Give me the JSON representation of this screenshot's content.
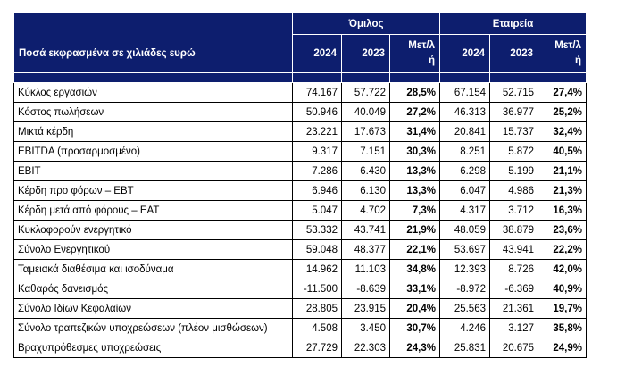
{
  "header": {
    "group": "Όμιλος",
    "company": "Εταιρεία",
    "row_label": "Ποσά εκφρασμένα σε χιλιάδες ευρώ",
    "columns": [
      "2024",
      "2023",
      "Μετ/λ ή",
      "2024",
      "2023",
      "Μετ/λ ή"
    ],
    "change_line1": "Μετ/λ",
    "change_line2": "ή"
  },
  "rows": [
    {
      "label": "Κύκλος εργασιών",
      "values": [
        "74.167",
        "57.722",
        "28,5%",
        "67.154",
        "52.715",
        "27,4%"
      ]
    },
    {
      "label": "Κόστος πωλήσεων",
      "values": [
        "50.946",
        "40.049",
        "27,2%",
        "46.313",
        "36.977",
        "25,2%"
      ]
    },
    {
      "label": "Μικτά κέρδη",
      "values": [
        "23.221",
        "17.673",
        "31,4%",
        "20.841",
        "15.737",
        "32,4%"
      ]
    },
    {
      "label": "EBITDA (προσαρμοσμένο)",
      "values": [
        "9.317",
        "7.151",
        "30,3%",
        "8.251",
        "5.872",
        "40,5%"
      ]
    },
    {
      "label": "EBIT",
      "values": [
        "7.286",
        "6.430",
        "13,3%",
        "6.298",
        "5.199",
        "21,1%"
      ]
    },
    {
      "label": "Κέρδη προ φόρων – EBT",
      "values": [
        "6.946",
        "6.130",
        "13,3%",
        "6.047",
        "4.986",
        "21,3%"
      ]
    },
    {
      "label": "Κέρδη μετά από φόρους – EAT",
      "values": [
        "5.047",
        "4.702",
        "7,3%",
        "4.317",
        "3.712",
        "16,3%"
      ]
    },
    {
      "label": "Κυκλοφορούν ενεργητικό",
      "values": [
        "53.332",
        "43.741",
        "21,9%",
        "48.059",
        "38.879",
        "23,6%"
      ]
    },
    {
      "label": "Σύνολο Ενεργητικού",
      "values": [
        "59.048",
        "48.377",
        "22,1%",
        "53.697",
        "43.941",
        "22,2%"
      ]
    },
    {
      "label": "Ταμειακά διαθέσιμα και ισοδύναμα",
      "values": [
        "14.962",
        "11.103",
        "34,8%",
        "12.393",
        "8.726",
        "42,0%"
      ]
    },
    {
      "label": "Καθαρός δανεισμός",
      "values": [
        "-11.500",
        "-8.639",
        "33,1%",
        "-8.972",
        "-6.369",
        "40,9%"
      ]
    },
    {
      "label": "Σύνολο Ιδίων Κεφαλαίων",
      "values": [
        "28.805",
        "23.915",
        "20,4%",
        "25.563",
        "21.361",
        "19,7%"
      ]
    },
    {
      "label": "Σύνολο τραπεζικών υποχρεώσεων (πλέον μισθώσεων)",
      "values": [
        "4.508",
        "3.450",
        "30,7%",
        "4.246",
        "3.127",
        "35,8%"
      ]
    },
    {
      "label": "Βραχυπρόθεσμες υποχρεώσεις",
      "values": [
        "27.729",
        "22.303",
        "24,3%",
        "25.831",
        "20.675",
        "24,9%"
      ]
    }
  ],
  "colors": {
    "header_bg": "#0d1e6e",
    "header_text": "#ffffff",
    "border": "#000000"
  }
}
